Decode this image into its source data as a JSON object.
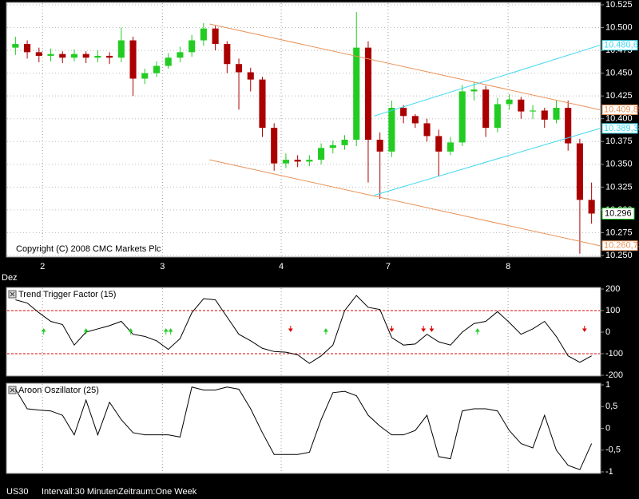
{
  "chart_data": [
    {
      "type": "candlestick",
      "xlim": [
        -0.5,
        49.5
      ],
      "xticks": [
        {
          "value": 2.3,
          "label": "2"
        },
        {
          "value": 12.5,
          "label": "3"
        },
        {
          "value": 22.6,
          "label": "4"
        },
        {
          "value": 31.7,
          "label": "7"
        },
        {
          "value": 41.9,
          "label": "8"
        }
      ],
      "x_axis_note": "Dez",
      "ylim": [
        10250,
        10525
      ],
      "yticks": [
        {
          "value": 10525,
          "label": "10.525"
        },
        {
          "value": 10500,
          "label": "10.500"
        },
        {
          "value": 10475,
          "label": "10.475"
        },
        {
          "value": 10450,
          "label": "10.450"
        },
        {
          "value": 10425,
          "label": "10.425"
        },
        {
          "value": 10400,
          "label": "10.400"
        },
        {
          "value": 10375,
          "label": "10.375"
        },
        {
          "value": 10350,
          "label": "10.350"
        },
        {
          "value": 10325,
          "label": "10.325"
        },
        {
          "value": 10300,
          "label": "10.300"
        },
        {
          "value": 10275,
          "label": "10.275"
        },
        {
          "value": 10250,
          "label": "10.250"
        }
      ],
      "grid": true,
      "up_color": "#22cc22",
      "down_color": "#aa0000",
      "open": [
        10478,
        10482,
        10473,
        10469,
        10471,
        10467,
        10471,
        10467,
        10469,
        10467,
        10486,
        10444,
        10450,
        10458,
        10467,
        10473,
        10486,
        10499,
        10482,
        10460,
        10451,
        10443,
        10390,
        10351,
        10355,
        10353,
        10355,
        10368,
        10371,
        10377,
        10478,
        10377,
        10364,
        10412,
        10403,
        10395,
        10381,
        10364,
        10374,
        10430,
        10432,
        10390,
        10416,
        10421,
        10408,
        10409,
        10399,
        10412,
        10373,
        10311
      ],
      "high": [
        10490,
        10486,
        10478,
        10477,
        10474,
        10476,
        10474,
        10475,
        10473,
        10500,
        10490,
        10455,
        10463,
        10472,
        10479,
        10492,
        10505,
        10502,
        10485,
        10466,
        10456,
        10446,
        10395,
        10362,
        10360,
        10360,
        10373,
        10376,
        10382,
        10517,
        10485,
        10385,
        10420,
        10415,
        10405,
        10400,
        10388,
        10380,
        10437,
        10440,
        10436,
        10423,
        10427,
        10424,
        10415,
        10412,
        10420,
        10420,
        10378,
        10330
      ],
      "low": [
        10470,
        10466,
        10462,
        10463,
        10461,
        10463,
        10461,
        10462,
        10460,
        10462,
        10425,
        10438,
        10446,
        10455,
        10462,
        10468,
        10480,
        10475,
        10450,
        10410,
        10430,
        10380,
        10343,
        10346,
        10347,
        10348,
        10350,
        10362,
        10366,
        10370,
        10330,
        10312,
        10358,
        10395,
        10390,
        10375,
        10337,
        10360,
        10370,
        10420,
        10380,
        10385,
        10410,
        10400,
        10400,
        10390,
        10395,
        10365,
        10252,
        10285
      ],
      "close": [
        10482,
        10473,
        10469,
        10471,
        10467,
        10471,
        10467,
        10469,
        10467,
        10486,
        10444,
        10450,
        10458,
        10467,
        10473,
        10486,
        10499,
        10482,
        10460,
        10451,
        10443,
        10390,
        10351,
        10355,
        10353,
        10355,
        10368,
        10371,
        10377,
        10478,
        10377,
        10364,
        10412,
        10403,
        10395,
        10381,
        10364,
        10374,
        10430,
        10432,
        10390,
        10416,
        10421,
        10408,
        10409,
        10399,
        10412,
        10373,
        10311,
        10296
      ],
      "last_label": "10.296",
      "lines": [
        {
          "color": "#e8935a",
          "x": [
            16.5,
            49.7
          ],
          "y": [
            10504,
            10409.85
          ],
          "end_label": "10.409,85"
        },
        {
          "color": "#e8935a",
          "x": [
            16.5,
            49.7
          ],
          "y": [
            10355,
            10260.73
          ],
          "end_label": "10.260,73"
        },
        {
          "color": "#40d8f0",
          "x": [
            30.5,
            49.7
          ],
          "y": [
            10403,
            10480.61
          ],
          "end_label": "10.480,61"
        },
        {
          "color": "#40d8f0",
          "x": [
            30.5,
            49.7
          ],
          "y": [
            10316,
            10389.38
          ],
          "end_label": "10.389,38"
        }
      ],
      "annotation": "Copyright (C) 2008 CMC Markets Plc"
    },
    {
      "type": "line",
      "title": "Trend Trigger Factor (15)",
      "xlim": [
        -0.5,
        49.5
      ],
      "ylim": [
        -200,
        200
      ],
      "yticks": [
        200,
        100,
        0,
        -100,
        -200
      ],
      "color": "#000000",
      "levels": [
        100,
        -100
      ],
      "level_color": "#dd0000",
      "values": [
        150,
        135,
        90,
        50,
        35,
        -60,
        0,
        15,
        30,
        50,
        -10,
        -20,
        -40,
        -80,
        -30,
        90,
        155,
        150,
        70,
        -10,
        -40,
        -75,
        -90,
        -93,
        -105,
        -145,
        -110,
        -60,
        100,
        170,
        115,
        105,
        -25,
        -60,
        -55,
        -10,
        -45,
        -60,
        0,
        40,
        50,
        95,
        45,
        -10,
        15,
        50,
        -20,
        -110,
        -140,
        -110
      ],
      "signals": {
        "up": [
          2.4,
          6.0,
          9.8,
          12.8,
          13.2,
          26.4,
          39.3
        ],
        "down": [
          23.4,
          32.0,
          34.7,
          35.4,
          48.4
        ]
      },
      "up_color": "#22cc22",
      "down_color": "#dd0000"
    },
    {
      "type": "line",
      "title": "Aroon Oszillator (25)",
      "xlim": [
        -0.5,
        49.5
      ],
      "ylim": [
        -1,
        1
      ],
      "yticks": [
        1,
        {
          "value": 0.5,
          "label": "0,5"
        },
        0,
        {
          "value": -0.5,
          "label": "-0,5"
        },
        -1
      ],
      "color": "#000000",
      "values": [
        0.9,
        0.45,
        0.42,
        0.4,
        0.3,
        -0.15,
        0.65,
        -0.15,
        0.6,
        0.2,
        -0.1,
        -0.15,
        -0.15,
        -0.15,
        -0.2,
        0.95,
        0.88,
        0.88,
        0.95,
        0.9,
        0.45,
        -0.1,
        -0.6,
        -0.6,
        -0.6,
        -0.55,
        0.2,
        0.82,
        0.85,
        0.75,
        0.3,
        0.05,
        -0.15,
        -0.15,
        -0.05,
        0.3,
        -0.65,
        -0.7,
        0.4,
        0.45,
        0.45,
        0.4,
        -0.05,
        -0.35,
        -0.45,
        0.3,
        -0.5,
        -0.85,
        -0.95,
        -0.35
      ]
    }
  ],
  "footer": {
    "symbol": "US30",
    "interval": "Intervall:30 Minuten",
    "period": "Zeitraum:One Week"
  }
}
